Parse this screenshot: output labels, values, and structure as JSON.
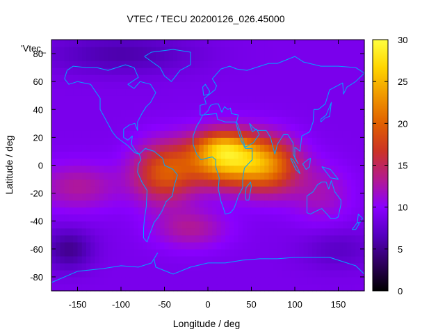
{
  "chart_data": {
    "type": "heatmap",
    "title": "VTEC / TECU 20200126_026.45000",
    "xlabel": "Longitude / deg",
    "ylabel": "Latitude / deg",
    "xlim": [
      -180,
      180
    ],
    "ylim": [
      -90,
      90
    ],
    "xticks": [
      -150,
      -100,
      -50,
      0,
      50,
      100,
      150
    ],
    "yticks": [
      -80,
      -60,
      -40,
      -20,
      0,
      20,
      40,
      60,
      80
    ],
    "colorbar": {
      "min": 0,
      "max": 30,
      "ticks": [
        0,
        5,
        10,
        15,
        20,
        25,
        30
      ]
    },
    "legend_label": "'Vtec_",
    "colormap": [
      "#000000",
      "#2f005f",
      "#5500c0",
      "#8a00ff",
      "#b31a90",
      "#cc3326",
      "#e06000",
      "#f09800",
      "#ffd500",
      "#ffff40"
    ],
    "coast_color": "#00a6ff",
    "grid_step_deg": 5,
    "background_tec": 9,
    "features": [
      {
        "name": "equatorial-anomaly-africa",
        "lon": 20,
        "lat": 5,
        "amp": 17,
        "sigma_lon": 30,
        "sigma_lat": 13
      },
      {
        "name": "equatorial-anomaly-north-crest",
        "lon": 15,
        "lat": 15,
        "amp": 4,
        "sigma_lon": 20,
        "sigma_lat": 6
      },
      {
        "name": "equatorial-anomaly-south-america",
        "lon": -50,
        "lat": -5,
        "amp": 10,
        "sigma_lon": 25,
        "sigma_lat": 15
      },
      {
        "name": "equatorial-anomaly-indian-ocean",
        "lon": 70,
        "lat": 0,
        "amp": 11,
        "sigma_lon": 25,
        "sigma_lat": 14
      },
      {
        "name": "west-pacific-band",
        "lon": -150,
        "lat": -15,
        "amp": 4,
        "sigma_lon": 35,
        "sigma_lat": 12
      },
      {
        "name": "australia-band",
        "lon": 130,
        "lat": -20,
        "amp": 3,
        "sigma_lon": 25,
        "sigma_lat": 15
      },
      {
        "name": "south-atlantic-tail",
        "lon": -20,
        "lat": -45,
        "amp": 4,
        "sigma_lon": 30,
        "sigma_lat": 10
      },
      {
        "name": "south-pacific-low",
        "lon": -160,
        "lat": -60,
        "amp": -4,
        "sigma_lon": 20,
        "sigma_lat": 10
      },
      {
        "name": "arctic-low",
        "lon": -100,
        "lat": 80,
        "amp": -3,
        "sigma_lon": 60,
        "sigma_lat": 10
      },
      {
        "name": "southern-ocean-low",
        "lon": 150,
        "lat": -60,
        "amp": -2,
        "sigma_lon": 30,
        "sigma_lat": 10
      }
    ],
    "coastlines": [
      {
        "name": "north-america",
        "points": [
          [
            -165,
            62
          ],
          [
            -162,
            68
          ],
          [
            -155,
            71
          ],
          [
            -140,
            70
          ],
          [
            -128,
            70
          ],
          [
            -115,
            68
          ],
          [
            -95,
            72
          ],
          [
            -85,
            70
          ],
          [
            -80,
            63
          ],
          [
            -92,
            58
          ],
          [
            -85,
            55
          ],
          [
            -78,
            60
          ],
          [
            -66,
            58
          ],
          [
            -60,
            52
          ],
          [
            -66,
            45
          ],
          [
            -71,
            42
          ],
          [
            -76,
            37
          ],
          [
            -81,
            31
          ],
          [
            -81,
            25
          ],
          [
            -84,
            30
          ],
          [
            -90,
            29
          ],
          [
            -97,
            26
          ],
          [
            -97,
            20
          ],
          [
            -92,
            18
          ],
          [
            -87,
            21
          ],
          [
            -88,
            15
          ],
          [
            -83,
            10
          ],
          [
            -79,
            8
          ],
          [
            -84,
            9
          ],
          [
            -92,
            14
          ],
          [
            -105,
            20
          ],
          [
            -110,
            24
          ],
          [
            -117,
            32
          ],
          [
            -124,
            40
          ],
          [
            -124,
            48
          ],
          [
            -135,
            58
          ],
          [
            -150,
            60
          ],
          [
            -160,
            58
          ],
          [
            -165,
            62
          ]
        ]
      },
      {
        "name": "south-america",
        "points": [
          [
            -79,
            8
          ],
          [
            -72,
            12
          ],
          [
            -62,
            10
          ],
          [
            -52,
            5
          ],
          [
            -50,
            0
          ],
          [
            -40,
            -3
          ],
          [
            -35,
            -7
          ],
          [
            -39,
            -15
          ],
          [
            -41,
            -22
          ],
          [
            -48,
            -26
          ],
          [
            -53,
            -33
          ],
          [
            -58,
            -38
          ],
          [
            -62,
            -41
          ],
          [
            -65,
            -46
          ],
          [
            -68,
            -51
          ],
          [
            -70,
            -55
          ],
          [
            -74,
            -52
          ],
          [
            -74,
            -45
          ],
          [
            -73,
            -38
          ],
          [
            -71,
            -30
          ],
          [
            -70,
            -18
          ],
          [
            -76,
            -12
          ],
          [
            -81,
            -5
          ],
          [
            -80,
            1
          ],
          [
            -77,
            4
          ],
          [
            -79,
            8
          ]
        ]
      },
      {
        "name": "greenland",
        "points": [
          [
            -73,
            78
          ],
          [
            -65,
            81
          ],
          [
            -40,
            83
          ],
          [
            -20,
            81
          ],
          [
            -20,
            72
          ],
          [
            -32,
            68
          ],
          [
            -42,
            60
          ],
          [
            -50,
            64
          ],
          [
            -55,
            70
          ],
          [
            -73,
            78
          ]
        ]
      },
      {
        "name": "eurasia",
        "points": [
          [
            -9,
            36
          ],
          [
            -9,
            43
          ],
          [
            -2,
            44
          ],
          [
            -4,
            48
          ],
          [
            2,
            51
          ],
          [
            8,
            54
          ],
          [
            10,
            57
          ],
          [
            5,
            62
          ],
          [
            15,
            69
          ],
          [
            25,
            71
          ],
          [
            33,
            69
          ],
          [
            45,
            68
          ],
          [
            55,
            70
          ],
          [
            70,
            73
          ],
          [
            80,
            73
          ],
          [
            100,
            78
          ],
          [
            110,
            74
          ],
          [
            130,
            71
          ],
          [
            150,
            71
          ],
          [
            170,
            70
          ],
          [
            180,
            66
          ],
          [
            170,
            60
          ],
          [
            160,
            56
          ],
          [
            156,
            51
          ],
          [
            155,
            59
          ],
          [
            140,
            54
          ],
          [
            135,
            44
          ],
          [
            127,
            40
          ],
          [
            122,
            40
          ],
          [
            121,
            31
          ],
          [
            117,
            24
          ],
          [
            108,
            21
          ],
          [
            106,
            10
          ],
          [
            100,
            13
          ],
          [
            100,
            5
          ],
          [
            104,
            1
          ],
          [
            98,
            8
          ],
          [
            98,
            16
          ],
          [
            92,
            22
          ],
          [
            87,
            22
          ],
          [
            80,
            15
          ],
          [
            77,
            8
          ],
          [
            72,
            20
          ],
          [
            67,
            25
          ],
          [
            57,
            25
          ],
          [
            52,
            27
          ],
          [
            48,
            30
          ],
          [
            51,
            24
          ],
          [
            56,
            26
          ],
          [
            59,
            22
          ],
          [
            52,
            16
          ],
          [
            43,
            13
          ],
          [
            35,
            28
          ],
          [
            33,
            31
          ],
          [
            35,
            36
          ],
          [
            27,
            37
          ],
          [
            26,
            41
          ],
          [
            23,
            40
          ],
          [
            19,
            42
          ],
          [
            16,
            38
          ],
          [
            12,
            44
          ],
          [
            8,
            44
          ],
          [
            3,
            43
          ],
          [
            0,
            39
          ],
          [
            -5,
            36
          ],
          [
            -9,
            36
          ]
        ]
      },
      {
        "name": "africa",
        "points": [
          [
            -17,
            15
          ],
          [
            -17,
            21
          ],
          [
            -13,
            28
          ],
          [
            -9,
            32
          ],
          [
            -6,
            36
          ],
          [
            10,
            37
          ],
          [
            11,
            33
          ],
          [
            20,
            31
          ],
          [
            32,
            31
          ],
          [
            35,
            24
          ],
          [
            38,
            18
          ],
          [
            43,
            12
          ],
          [
            51,
            12
          ],
          [
            51,
            4
          ],
          [
            42,
            -2
          ],
          [
            40,
            -10
          ],
          [
            40,
            -16
          ],
          [
            35,
            -22
          ],
          [
            33,
            -26
          ],
          [
            30,
            -31
          ],
          [
            26,
            -34
          ],
          [
            20,
            -35
          ],
          [
            18,
            -31
          ],
          [
            15,
            -26
          ],
          [
            12,
            -17
          ],
          [
            13,
            -9
          ],
          [
            9,
            -1
          ],
          [
            9,
            4
          ],
          [
            5,
            6
          ],
          [
            -2,
            5
          ],
          [
            -8,
            4
          ],
          [
            -13,
            8
          ],
          [
            -17,
            15
          ]
        ]
      },
      {
        "name": "madagascar",
        "points": [
          [
            44,
            -25
          ],
          [
            47,
            -25
          ],
          [
            50,
            -15
          ],
          [
            49,
            -12
          ],
          [
            44,
            -16
          ],
          [
            43,
            -22
          ],
          [
            44,
            -25
          ]
        ]
      },
      {
        "name": "australia",
        "points": [
          [
            114,
            -22
          ],
          [
            114,
            -34
          ],
          [
            118,
            -35
          ],
          [
            124,
            -33
          ],
          [
            131,
            -31
          ],
          [
            137,
            -35
          ],
          [
            141,
            -38
          ],
          [
            147,
            -38
          ],
          [
            150,
            -37
          ],
          [
            153,
            -28
          ],
          [
            153,
            -25
          ],
          [
            146,
            -19
          ],
          [
            142,
            -11
          ],
          [
            139,
            -17
          ],
          [
            136,
            -12
          ],
          [
            131,
            -12
          ],
          [
            126,
            -14
          ],
          [
            121,
            -19
          ],
          [
            114,
            -22
          ]
        ]
      },
      {
        "name": "antarctica",
        "points": [
          [
            -180,
            -84
          ],
          [
            -150,
            -76
          ],
          [
            -120,
            -74
          ],
          [
            -100,
            -72
          ],
          [
            -80,
            -73
          ],
          [
            -65,
            -70
          ],
          [
            -58,
            -63
          ],
          [
            -62,
            -67
          ],
          [
            -60,
            -73
          ],
          [
            -40,
            -78
          ],
          [
            -20,
            -73
          ],
          [
            0,
            -70
          ],
          [
            20,
            -70
          ],
          [
            40,
            -68
          ],
          [
            60,
            -67
          ],
          [
            80,
            -67
          ],
          [
            100,
            -66
          ],
          [
            120,
            -66
          ],
          [
            140,
            -66
          ],
          [
            160,
            -70
          ],
          [
            170,
            -72
          ],
          [
            180,
            -78
          ]
        ]
      },
      {
        "name": "britain",
        "points": [
          [
            -5,
            50
          ],
          [
            1,
            51
          ],
          [
            2,
            53
          ],
          [
            -3,
            58
          ],
          [
            -6,
            56
          ],
          [
            -5,
            50
          ]
        ]
      },
      {
        "name": "japan",
        "points": [
          [
            130,
            31
          ],
          [
            135,
            34
          ],
          [
            140,
            35
          ],
          [
            141,
            40
          ],
          [
            142,
            45
          ],
          [
            140,
            42
          ],
          [
            136,
            36
          ],
          [
            130,
            33
          ],
          [
            130,
            31
          ]
        ]
      },
      {
        "name": "borneo",
        "points": [
          [
            109,
            1
          ],
          [
            113,
            -3
          ],
          [
            117,
            -1
          ],
          [
            118,
            5
          ],
          [
            115,
            4
          ],
          [
            109,
            1
          ]
        ]
      },
      {
        "name": "sumatra",
        "points": [
          [
            95,
            5
          ],
          [
            98,
            4
          ],
          [
            104,
            -3
          ],
          [
            106,
            -6
          ],
          [
            101,
            -3
          ],
          [
            95,
            5
          ]
        ]
      },
      {
        "name": "new-guinea",
        "points": [
          [
            131,
            -1
          ],
          [
            141,
            -3
          ],
          [
            150,
            -10
          ],
          [
            141,
            -9
          ],
          [
            135,
            -4
          ],
          [
            131,
            -1
          ]
        ]
      },
      {
        "name": "new-zealand",
        "points": [
          [
            173,
            -35
          ],
          [
            178,
            -38
          ],
          [
            175,
            -41
          ],
          [
            172,
            -41
          ],
          [
            173,
            -35
          ]
        ]
      },
      {
        "name": "new-zealand-south",
        "points": [
          [
            172,
            -41
          ],
          [
            174,
            -42
          ],
          [
            170,
            -46
          ],
          [
            166,
            -46
          ],
          [
            172,
            -41
          ]
        ]
      }
    ]
  }
}
